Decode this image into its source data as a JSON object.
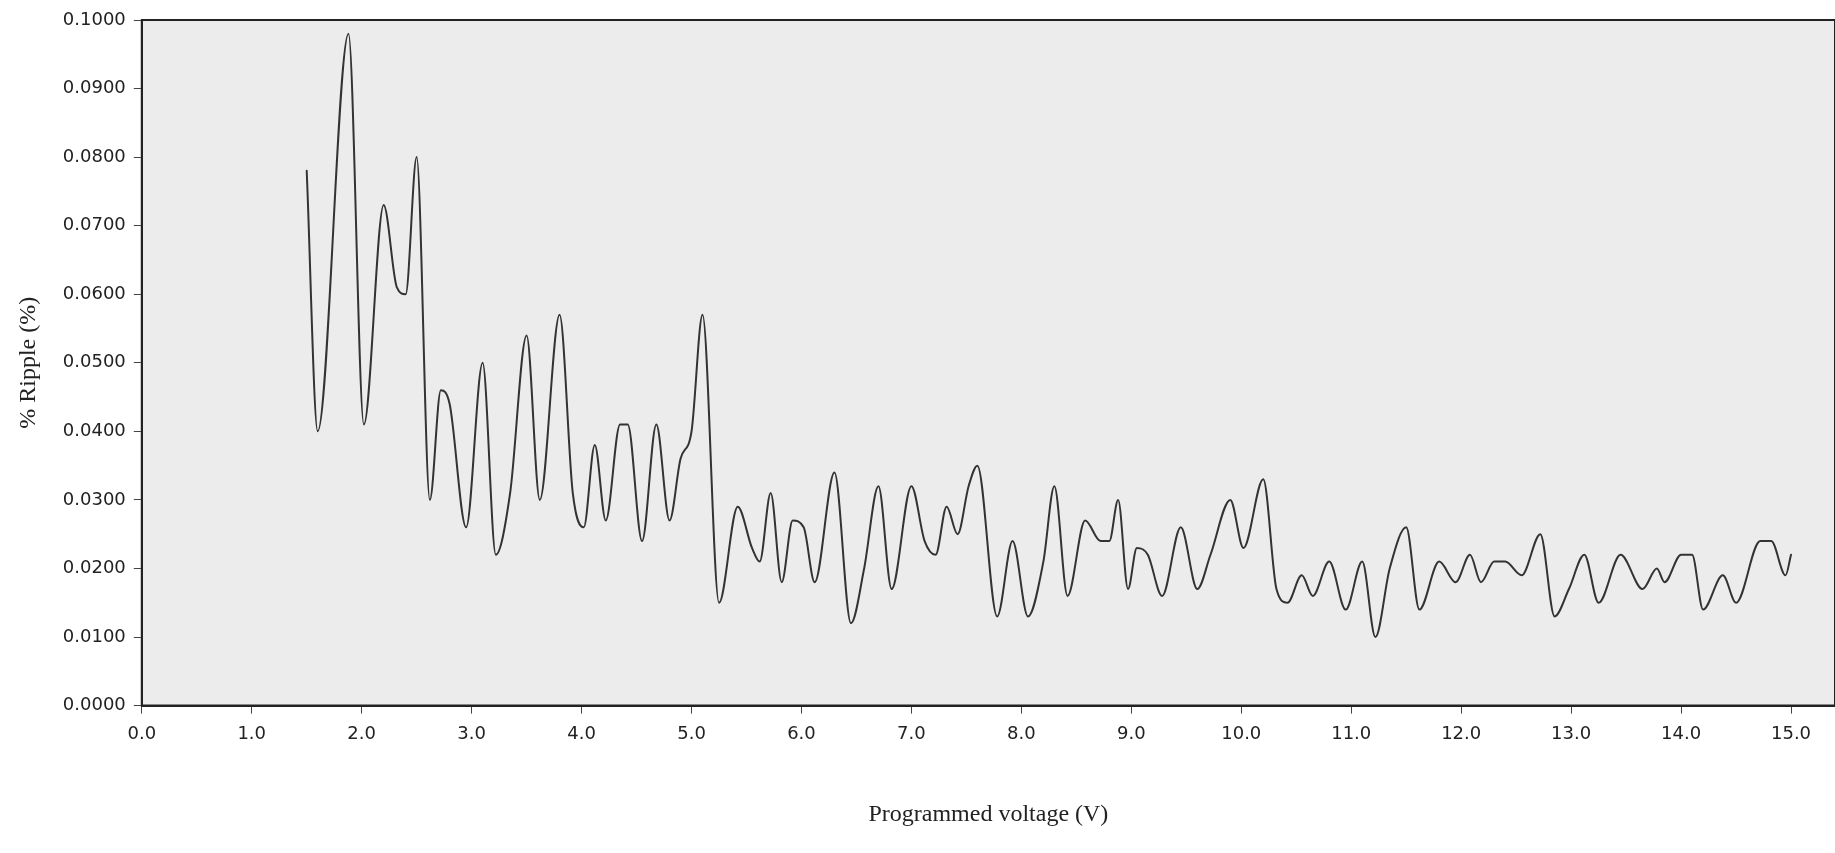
{
  "chart_data": {
    "type": "line",
    "xlabel": "Programmed voltage (V)",
    "ylabel": "% Ripple (%)",
    "xlim": [
      0,
      15.4
    ],
    "ylim": [
      0,
      0.1
    ],
    "xticks": [
      {
        "value": 0,
        "label": "0.0"
      },
      {
        "value": 1,
        "label": "1.0"
      },
      {
        "value": 2,
        "label": "2.0"
      },
      {
        "value": 3,
        "label": "3.0"
      },
      {
        "value": 4,
        "label": "4.0"
      },
      {
        "value": 5,
        "label": "5.0"
      },
      {
        "value": 6,
        "label": "6.0"
      },
      {
        "value": 7,
        "label": "7.0"
      },
      {
        "value": 8,
        "label": "8.0"
      },
      {
        "value": 9,
        "label": "9.0"
      },
      {
        "value": 10,
        "label": "10.0"
      },
      {
        "value": 11,
        "label": "11.0"
      },
      {
        "value": 12,
        "label": "12.0"
      },
      {
        "value": 13,
        "label": "13.0"
      },
      {
        "value": 14,
        "label": "14.0"
      },
      {
        "value": 15,
        "label": "15.0"
      }
    ],
    "yticks": [
      {
        "value": 0,
        "label": "0.0000"
      },
      {
        "value": 0.01,
        "label": "0.0100"
      },
      {
        "value": 0.02,
        "label": "0.0200"
      },
      {
        "value": 0.03,
        "label": "0.0300"
      },
      {
        "value": 0.04,
        "label": "0.0400"
      },
      {
        "value": 0.05,
        "label": "0.0500"
      },
      {
        "value": 0.06,
        "label": "0.0600"
      },
      {
        "value": 0.07,
        "label": "0.0700"
      },
      {
        "value": 0.08,
        "label": "0.0800"
      },
      {
        "value": 0.09,
        "label": "0.0900"
      },
      {
        "value": 0.1,
        "label": "0.1000"
      }
    ],
    "grid": false,
    "legend": false,
    "marker": "none",
    "line_style": "solid",
    "series": [
      {
        "color": "#333333",
        "x": [
          1.5,
          1.6,
          1.88,
          2.02,
          2.2,
          2.32,
          2.4,
          2.5,
          2.62,
          2.72,
          2.8,
          2.95,
          3.1,
          3.22,
          3.35,
          3.5,
          3.62,
          3.8,
          3.92,
          4.02,
          4.12,
          4.22,
          4.35,
          4.42,
          4.55,
          4.68,
          4.8,
          4.9,
          5.0,
          5.1,
          5.25,
          5.42,
          5.55,
          5.62,
          5.72,
          5.82,
          5.92,
          6.02,
          6.12,
          6.3,
          6.45,
          6.57,
          6.7,
          6.82,
          7.0,
          7.12,
          7.22,
          7.32,
          7.42,
          7.52,
          7.6,
          7.78,
          7.92,
          8.06,
          8.2,
          8.3,
          8.42,
          8.58,
          8.72,
          8.8,
          8.88,
          8.97,
          9.05,
          9.15,
          9.28,
          9.45,
          9.6,
          9.72,
          9.9,
          10.02,
          10.2,
          10.32,
          10.42,
          10.55,
          10.65,
          10.8,
          10.95,
          11.1,
          11.22,
          11.35,
          11.5,
          11.62,
          11.8,
          11.95,
          12.08,
          12.18,
          12.3,
          12.4,
          12.55,
          12.72,
          12.85,
          12.98,
          13.12,
          13.25,
          13.45,
          13.65,
          13.78,
          13.85,
          14.0,
          14.1,
          14.2,
          14.38,
          14.5,
          14.72,
          14.82,
          14.95,
          15.0
        ],
        "values": [
          0.078,
          0.04,
          0.098,
          0.041,
          0.073,
          0.061,
          0.06,
          0.08,
          0.03,
          0.046,
          0.044,
          0.026,
          0.05,
          0.022,
          0.031,
          0.054,
          0.03,
          0.057,
          0.031,
          0.026,
          0.038,
          0.027,
          0.041,
          0.041,
          0.024,
          0.041,
          0.027,
          0.036,
          0.04,
          0.057,
          0.015,
          0.029,
          0.023,
          0.021,
          0.031,
          0.018,
          0.027,
          0.026,
          0.018,
          0.034,
          0.012,
          0.02,
          0.032,
          0.017,
          0.032,
          0.024,
          0.022,
          0.029,
          0.025,
          0.032,
          0.035,
          0.013,
          0.024,
          0.013,
          0.021,
          0.032,
          0.016,
          0.027,
          0.024,
          0.024,
          0.03,
          0.017,
          0.023,
          0.022,
          0.016,
          0.026,
          0.017,
          0.022,
          0.03,
          0.023,
          0.033,
          0.017,
          0.015,
          0.019,
          0.016,
          0.021,
          0.014,
          0.021,
          0.01,
          0.02,
          0.026,
          0.014,
          0.021,
          0.018,
          0.022,
          0.018,
          0.021,
          0.021,
          0.019,
          0.025,
          0.013,
          0.017,
          0.022,
          0.015,
          0.022,
          0.017,
          0.02,
          0.018,
          0.022,
          0.022,
          0.014,
          0.019,
          0.015,
          0.024,
          0.024,
          0.019,
          0.022
        ]
      }
    ]
  }
}
